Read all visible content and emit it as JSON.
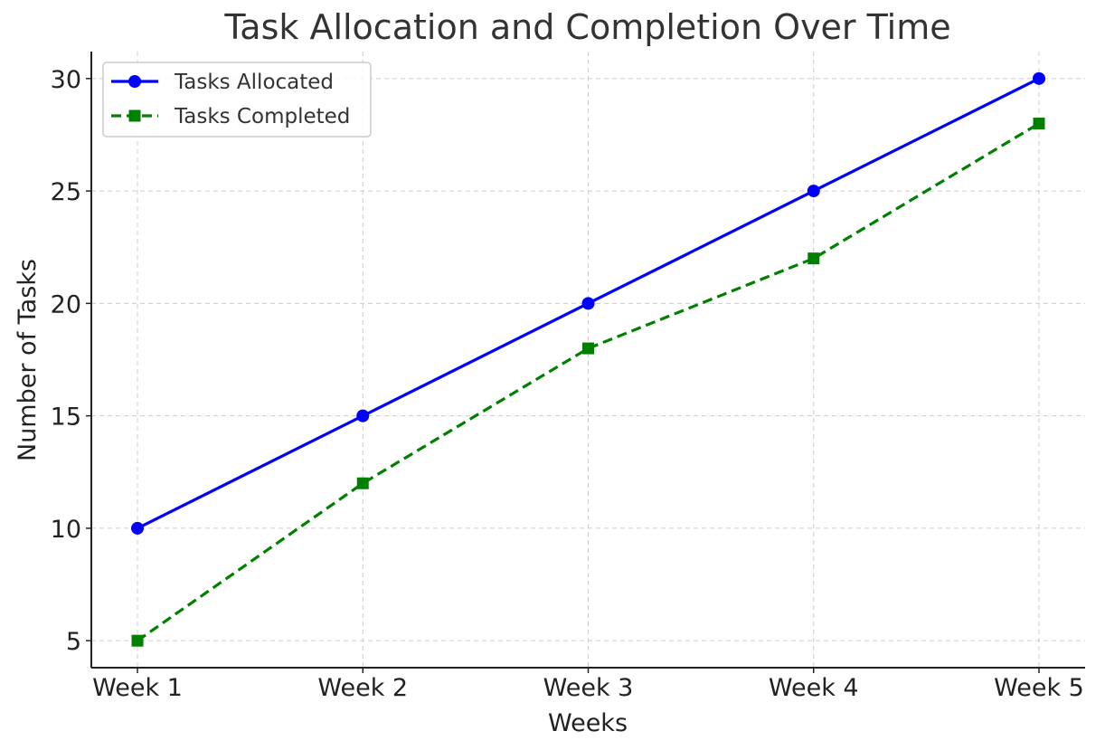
{
  "chart_data": {
    "type": "line",
    "title": "Task Allocation and Completion Over Time",
    "xlabel": "Weeks",
    "ylabel": "Number of Tasks",
    "categories": [
      "Week 1",
      "Week 2",
      "Week 3",
      "Week 4",
      "Week 5"
    ],
    "ylim": [
      3.8,
      31.2
    ],
    "yticks": [
      5,
      10,
      15,
      20,
      25,
      30
    ],
    "grid": true,
    "legend_position": "top-left",
    "series": [
      {
        "name": "Tasks Allocated",
        "values": [
          10,
          15,
          20,
          25,
          30
        ],
        "color": "#0000ff",
        "line_style": "solid",
        "marker": "circle"
      },
      {
        "name": "Tasks Completed",
        "values": [
          5,
          12,
          18,
          22,
          28
        ],
        "color": "#008000",
        "line_style": "dashed",
        "marker": "square"
      }
    ]
  }
}
